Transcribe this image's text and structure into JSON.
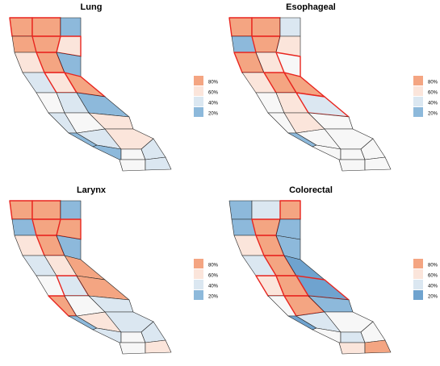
{
  "panels": [
    {
      "title": "Lung",
      "legend": [
        {
          "label": "80%",
          "color": "#f4a582"
        },
        {
          "label": "60%",
          "color": "#fbe5db"
        },
        {
          "label": "40%",
          "color": "#dbe7f1"
        },
        {
          "label": "20%",
          "color": "#8db9db"
        }
      ]
    },
    {
      "title": "Esophageal",
      "legend": [
        {
          "label": "80%",
          "color": "#f4a582"
        },
        {
          "label": "60%",
          "color": "#fbe5db"
        },
        {
          "label": "40%",
          "color": "#dbe7f1"
        },
        {
          "label": "20%",
          "color": "#8db9db"
        }
      ]
    },
    {
      "title": "Larynx",
      "legend": [
        {
          "label": "80%",
          "color": "#f4a582"
        },
        {
          "label": "60%",
          "color": "#fbe5db"
        },
        {
          "label": "40%",
          "color": "#dbe7f1"
        },
        {
          "label": "20%",
          "color": "#8db9db"
        }
      ]
    },
    {
      "title": "Colorectal",
      "legend": [
        {
          "label": "80%",
          "color": "#f4a582"
        },
        {
          "label": "60%",
          "color": "#fbe5db"
        },
        {
          "label": "40%",
          "color": "#dbe7f1"
        },
        {
          "label": "20%",
          "color": "#6fa3cf"
        }
      ]
    }
  ]
}
